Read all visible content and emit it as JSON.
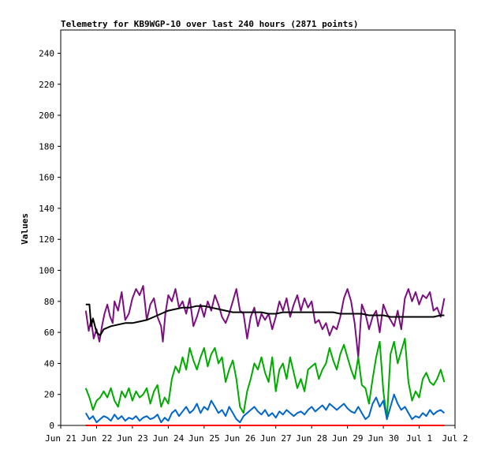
{
  "chart_data": {
    "type": "line",
    "title": "Telemetry for KB9WGP-10 over last 240 hours (2871 points)",
    "xlabel": "",
    "ylabel": "Values",
    "xlim": [
      0,
      11
    ],
    "ylim": [
      0,
      255
    ],
    "grid": false,
    "x_ticks": [
      {
        "value": 0,
        "label": "Jun 21"
      },
      {
        "value": 1,
        "label": "Jun 22"
      },
      {
        "value": 2,
        "label": "Jun 23"
      },
      {
        "value": 3,
        "label": "Jun 24"
      },
      {
        "value": 4,
        "label": "Jun 25"
      },
      {
        "value": 5,
        "label": "Jun 26"
      },
      {
        "value": 6,
        "label": "Jun 27"
      },
      {
        "value": 7,
        "label": "Jun 28"
      },
      {
        "value": 8,
        "label": "Jun 29"
      },
      {
        "value": 9,
        "label": "Jun 30"
      },
      {
        "value": 10,
        "label": "Jul 1"
      },
      {
        "value": 11,
        "label": "Jul 2"
      }
    ],
    "y_ticks": [
      0,
      20,
      40,
      60,
      80,
      100,
      120,
      140,
      160,
      180,
      200,
      220,
      240
    ],
    "series": [
      {
        "color": "#7b0f7f",
        "x": [
          0.7,
          0.78,
          0.85,
          0.92,
          1.0,
          1.08,
          1.15,
          1.22,
          1.3,
          1.38,
          1.45,
          1.5,
          1.6,
          1.7,
          1.8,
          1.9,
          2.0,
          2.1,
          2.2,
          2.3,
          2.4,
          2.5,
          2.6,
          2.7,
          2.8,
          2.85,
          2.92,
          3.0,
          3.1,
          3.2,
          3.3,
          3.4,
          3.5,
          3.6,
          3.7,
          3.8,
          3.9,
          4.0,
          4.1,
          4.2,
          4.3,
          4.4,
          4.5,
          4.6,
          4.7,
          4.8,
          4.9,
          5.0,
          5.1,
          5.2,
          5.3,
          5.4,
          5.5,
          5.6,
          5.7,
          5.8,
          5.9,
          6.0,
          6.1,
          6.2,
          6.3,
          6.4,
          6.5,
          6.6,
          6.7,
          6.8,
          6.9,
          7.0,
          7.1,
          7.2,
          7.3,
          7.4,
          7.5,
          7.6,
          7.7,
          7.8,
          7.9,
          8.0,
          8.1,
          8.2,
          8.3,
          8.4,
          8.5,
          8.6,
          8.7,
          8.8,
          8.9,
          9.0,
          9.1,
          9.2,
          9.3,
          9.4,
          9.5,
          9.6,
          9.7,
          9.8,
          9.9,
          10.0,
          10.1,
          10.2,
          10.3,
          10.4,
          10.5,
          10.6,
          10.7
        ],
        "values": [
          74,
          61,
          68,
          56,
          62,
          54,
          64,
          72,
          78,
          70,
          66,
          80,
          74,
          86,
          68,
          72,
          82,
          88,
          84,
          90,
          68,
          78,
          82,
          70,
          64,
          54,
          72,
          84,
          80,
          88,
          76,
          80,
          72,
          82,
          64,
          70,
          78,
          70,
          80,
          74,
          84,
          78,
          70,
          66,
          72,
          80,
          88,
          74,
          72,
          56,
          70,
          76,
          64,
          72,
          68,
          72,
          62,
          70,
          80,
          74,
          82,
          70,
          78,
          84,
          74,
          82,
          76,
          80,
          66,
          68,
          62,
          66,
          58,
          64,
          62,
          70,
          82,
          88,
          80,
          66,
          44,
          78,
          72,
          62,
          70,
          74,
          60,
          78,
          72,
          68,
          64,
          74,
          62,
          82,
          88,
          80,
          86,
          78,
          84,
          82,
          86,
          74,
          76,
          70,
          82
        ]
      },
      {
        "color": "#000000",
        "x": [
          0.7,
          0.8,
          0.85,
          0.9,
          1.0,
          1.1,
          1.2,
          1.4,
          1.6,
          1.8,
          2.0,
          2.2,
          2.4,
          2.6,
          2.8,
          3.0,
          3.2,
          3.4,
          3.6,
          3.8,
          4.0,
          4.2,
          4.4,
          4.6,
          4.8,
          5.0,
          5.2,
          5.4,
          5.6,
          5.8,
          6.0,
          6.2,
          6.4,
          6.6,
          6.8,
          7.0,
          7.2,
          7.4,
          7.6,
          7.8,
          8.0,
          8.2,
          8.4,
          8.6,
          8.8,
          9.0,
          9.2,
          9.4,
          9.6,
          9.8,
          10.0,
          10.2,
          10.4,
          10.6,
          10.7
        ],
        "values": [
          78,
          78,
          64,
          69,
          60,
          58,
          62,
          64,
          65,
          66,
          66,
          67,
          68,
          70,
          72,
          74,
          75,
          76,
          76,
          77,
          77,
          76,
          75,
          74,
          73,
          73,
          73,
          73,
          73,
          72,
          72,
          73,
          73,
          73,
          73,
          73,
          73,
          73,
          73,
          72,
          72,
          72,
          72,
          71,
          71,
          71,
          70,
          70,
          70,
          70,
          70,
          70,
          70,
          71,
          71
        ]
      },
      {
        "color": "#00aa00",
        "x": [
          0.7,
          0.8,
          0.9,
          1.0,
          1.1,
          1.2,
          1.3,
          1.4,
          1.5,
          1.6,
          1.7,
          1.8,
          1.9,
          2.0,
          2.1,
          2.2,
          2.3,
          2.4,
          2.5,
          2.6,
          2.7,
          2.8,
          2.9,
          3.0,
          3.1,
          3.2,
          3.3,
          3.4,
          3.5,
          3.6,
          3.7,
          3.8,
          3.9,
          4.0,
          4.1,
          4.2,
          4.3,
          4.4,
          4.5,
          4.6,
          4.7,
          4.8,
          4.9,
          5.0,
          5.1,
          5.2,
          5.3,
          5.4,
          5.5,
          5.6,
          5.7,
          5.8,
          5.9,
          6.0,
          6.1,
          6.2,
          6.3,
          6.4,
          6.5,
          6.6,
          6.7,
          6.8,
          6.9,
          7.0,
          7.1,
          7.2,
          7.3,
          7.4,
          7.5,
          7.6,
          7.7,
          7.8,
          7.9,
          8.0,
          8.1,
          8.2,
          8.3,
          8.4,
          8.5,
          8.6,
          8.7,
          8.8,
          8.9,
          9.0,
          9.1,
          9.2,
          9.3,
          9.4,
          9.5,
          9.6,
          9.7,
          9.8,
          9.9,
          10.0,
          10.1,
          10.2,
          10.3,
          10.4,
          10.5,
          10.6,
          10.7
        ],
        "values": [
          24,
          18,
          10,
          16,
          18,
          22,
          18,
          24,
          16,
          12,
          22,
          18,
          24,
          16,
          22,
          18,
          20,
          24,
          14,
          22,
          26,
          12,
          18,
          14,
          30,
          38,
          34,
          44,
          36,
          50,
          42,
          36,
          44,
          50,
          38,
          46,
          50,
          40,
          44,
          28,
          36,
          42,
          30,
          12,
          8,
          22,
          30,
          40,
          36,
          44,
          34,
          28,
          44,
          22,
          36,
          40,
          30,
          44,
          34,
          24,
          30,
          22,
          36,
          38,
          40,
          30,
          36,
          40,
          50,
          42,
          36,
          46,
          52,
          44,
          36,
          30,
          44,
          26,
          24,
          14,
          30,
          44,
          54,
          22,
          4,
          46,
          54,
          40,
          48,
          56,
          28,
          16,
          22,
          18,
          30,
          34,
          28,
          26,
          30,
          36,
          28
        ]
      },
      {
        "color": "#0066cc",
        "x": [
          0.7,
          0.8,
          0.9,
          1.0,
          1.1,
          1.2,
          1.3,
          1.4,
          1.5,
          1.6,
          1.7,
          1.8,
          1.9,
          2.0,
          2.1,
          2.2,
          2.3,
          2.4,
          2.5,
          2.6,
          2.7,
          2.8,
          2.9,
          3.0,
          3.1,
          3.2,
          3.3,
          3.4,
          3.5,
          3.6,
          3.7,
          3.8,
          3.9,
          4.0,
          4.1,
          4.2,
          4.3,
          4.4,
          4.5,
          4.6,
          4.7,
          4.8,
          4.9,
          5.0,
          5.1,
          5.2,
          5.3,
          5.4,
          5.5,
          5.6,
          5.7,
          5.8,
          5.9,
          6.0,
          6.1,
          6.2,
          6.3,
          6.4,
          6.5,
          6.6,
          6.7,
          6.8,
          6.9,
          7.0,
          7.1,
          7.2,
          7.3,
          7.4,
          7.5,
          7.6,
          7.7,
          7.8,
          7.9,
          8.0,
          8.1,
          8.2,
          8.3,
          8.4,
          8.5,
          8.6,
          8.7,
          8.8,
          8.9,
          9.0,
          9.1,
          9.2,
          9.3,
          9.4,
          9.5,
          9.6,
          9.7,
          9.8,
          9.9,
          10.0,
          10.1,
          10.2,
          10.3,
          10.4,
          10.5,
          10.6,
          10.7
        ],
        "values": [
          8,
          4,
          6,
          2,
          4,
          6,
          5,
          3,
          7,
          4,
          6,
          3,
          5,
          4,
          6,
          3,
          5,
          6,
          4,
          5,
          7,
          2,
          5,
          3,
          8,
          10,
          6,
          9,
          12,
          8,
          10,
          14,
          8,
          12,
          10,
          16,
          12,
          8,
          10,
          6,
          12,
          8,
          4,
          2,
          6,
          8,
          10,
          12,
          9,
          7,
          10,
          6,
          8,
          5,
          9,
          7,
          10,
          8,
          6,
          8,
          9,
          7,
          10,
          12,
          9,
          11,
          13,
          10,
          14,
          12,
          10,
          12,
          14,
          11,
          9,
          8,
          12,
          8,
          4,
          6,
          14,
          18,
          12,
          16,
          4,
          12,
          20,
          14,
          10,
          12,
          8,
          4,
          6,
          5,
          8,
          6,
          10,
          7,
          9,
          10,
          8
        ]
      },
      {
        "color": "#ff0000",
        "x": [
          0.7,
          10.7
        ],
        "values": [
          0,
          0
        ]
      }
    ]
  }
}
